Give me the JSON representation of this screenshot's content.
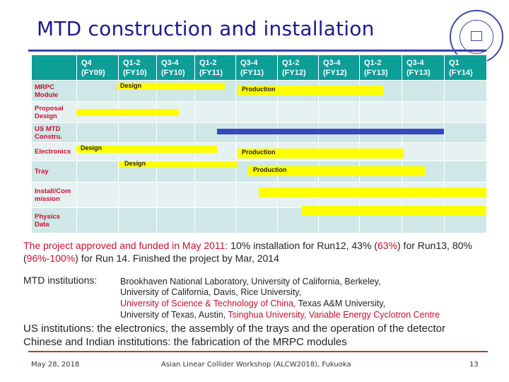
{
  "title": "MTD construction and installation",
  "gantt": {
    "headers": [
      {
        "q": "Q4",
        "fy": "(FY09)"
      },
      {
        "q": "Q1-2",
        "fy": "(FY10)"
      },
      {
        "q": "Q3-4",
        "fy": "(FY10)"
      },
      {
        "q": "Q1-2",
        "fy": "(FY11)"
      },
      {
        "q": "Q3-4",
        "fy": "(FY11)"
      },
      {
        "q": "Q1-2",
        "fy": "(FY12)"
      },
      {
        "q": "Q3-4",
        "fy": "(FY12)"
      },
      {
        "q": "Q1-2",
        "fy": "(FY13)"
      },
      {
        "q": "Q3-4",
        "fy": "(FY13)"
      },
      {
        "q": "Q1",
        "fy": "(FY14)"
      }
    ],
    "rows": [
      {
        "line1": "MRPC",
        "line2": "Module"
      },
      {
        "line1": "Proposal",
        "line2": "Design"
      },
      {
        "line1": "US MTD",
        "line2": "Constru."
      },
      {
        "line1": "Electronics",
        "line2": ""
      },
      {
        "line1": "Tray",
        "line2": ""
      },
      {
        "line1": "Install/Com",
        "line2": "mission"
      },
      {
        "line1": "Physics",
        "line2": "Data"
      }
    ],
    "bar_labels": {
      "design": "Design",
      "production": "Production"
    },
    "colors": {
      "header": "#0c9e97",
      "task_bar": "#ffff00",
      "construction_bar": "#3848c0",
      "row_label": "#c8102e"
    }
  },
  "para1": {
    "a": "The project approved and funded in May 2011: ",
    "b": "10% installation for Run12, 43% (",
    "c": "63%",
    "d": ") for Run13, 80% (",
    "e": "96%-100%",
    "f": ") for Run 14.  Finished the project by Mar, 2014"
  },
  "institutions": {
    "label": "MTD institutions: ",
    "line1": "Brookhaven National Laboratory, University of California, Berkeley,",
    "line2": "University of California, Davis, Rice University,",
    "line3a": "University of Science & Technology of China,",
    "line3b": "  Texas A&M University,",
    "line4a": "University of Texas, Austin, ",
    "line4b": "Tsinghua University, Variable Energy Cyclotron Centre"
  },
  "para3": {
    "line1": "US institutions: the electronics, the assembly of the trays and the operation of the detector",
    "line2": "Chinese and Indian institutions: the fabrication of the MRPC modules"
  },
  "footer": {
    "date": "May 28, 2018",
    "event": "Asian Linear Collider Workshop (ALCW2018), Fukuoka",
    "page": "13"
  }
}
